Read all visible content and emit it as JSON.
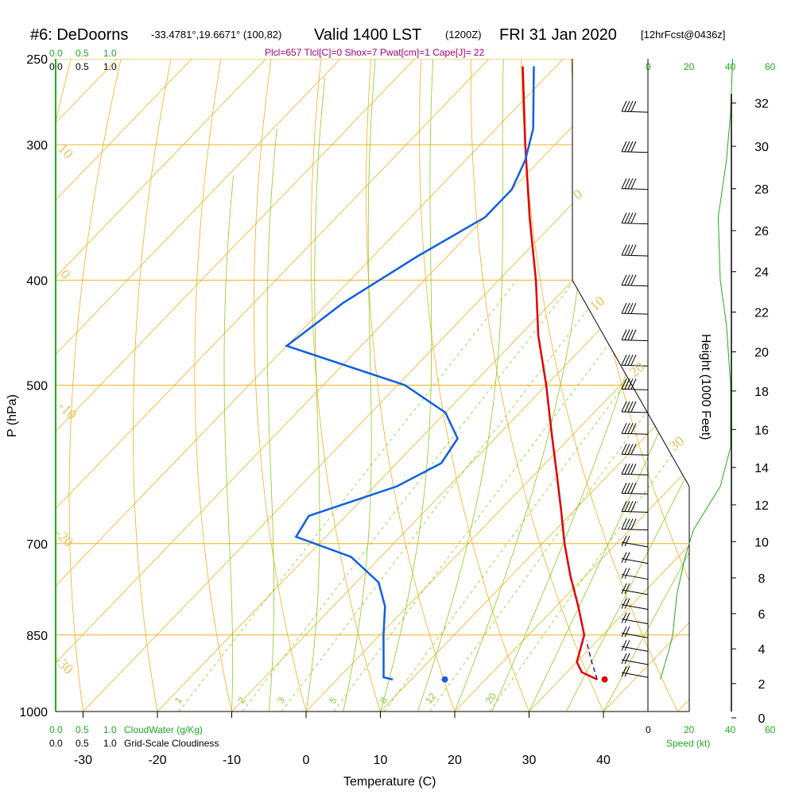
{
  "title": {
    "station": "#6: DeDoorns",
    "coords": "-33.4781°,19.6671° (100,82)",
    "valid": "Valid 1400 LST",
    "zulu": "(1200Z)",
    "date": "FRI 31 Jan 2020",
    "forecast": "[12hrFcst@0436z]"
  },
  "indices": "Plcl=657 Tlcl[C]=0 Shox=7 Pwat[cm]=1 Cape[J]= 22",
  "axes": {
    "xlabel": "Temperature (C)",
    "ylabel": "P (hPa)",
    "y2label": "Height (1000 Feet)",
    "speed_label": "Speed (kt)",
    "cloudwater_label": "CloudWater (g/Kg)",
    "cloudiness_label": "Grid-Scale Cloudiness"
  },
  "scale_labels": {
    "cloud_green": [
      "0.0",
      "0.5",
      "1.0"
    ],
    "cloud_black": [
      "0.0",
      "0.5",
      "1.0"
    ],
    "speed_ticks": [
      "0",
      "20",
      "40",
      "60"
    ]
  },
  "colors": {
    "isotherm": "#f0b020",
    "dry_adiabat": "#f0b020",
    "moist_adiabat": "#8ccc20",
    "mixing_ratio": "#8ccc20",
    "temperature": "#e00000",
    "dewpoint": "#1060e0",
    "parcel": "#660066",
    "cloud": "#22aa22",
    "barb": "#000000"
  },
  "chart_data": {
    "type": "skew-t",
    "title": "Valid 1400 LST (1200Z) FRI 31 Jan 2020",
    "xlabel": "Temperature (C)",
    "ylabel": "P (hPa)",
    "x_ticks": [
      -30,
      -20,
      -10,
      0,
      10,
      20,
      30,
      40
    ],
    "p_ticks": [
      250,
      300,
      400,
      500,
      700,
      850,
      1000
    ],
    "height_ticks_kft": [
      0,
      2,
      4,
      6,
      8,
      10,
      12,
      14,
      16,
      18,
      20,
      22,
      24,
      26,
      28,
      30,
      32
    ],
    "dry_adiabat_labels": [
      "10",
      "0",
      "-10",
      "-20",
      "-30",
      "0",
      "10",
      "20",
      "30"
    ],
    "mixing_ratio_labels": [
      "1",
      "2",
      "3",
      "5",
      "8",
      "12",
      "20"
    ],
    "series": [
      {
        "name": "Temperature",
        "points": [
          {
            "p": 934,
            "t": 35.0
          },
          {
            "p": 920,
            "t": 32.0
          },
          {
            "p": 900,
            "t": 30.0
          },
          {
            "p": 850,
            "t": 27.5
          },
          {
            "p": 800,
            "t": 23.0
          },
          {
            "p": 750,
            "t": 18.0
          },
          {
            "p": 700,
            "t": 13.0
          },
          {
            "p": 650,
            "t": 8.0
          },
          {
            "p": 600,
            "t": 2.5
          },
          {
            "p": 550,
            "t": -3.5
          },
          {
            "p": 500,
            "t": -10.0
          },
          {
            "p": 450,
            "t": -17.5
          },
          {
            "p": 400,
            "t": -25.0
          },
          {
            "p": 350,
            "t": -34.0
          },
          {
            "p": 300,
            "t": -44.0
          },
          {
            "p": 254,
            "t": -54.5
          }
        ]
      },
      {
        "name": "Dewpoint",
        "points": [
          {
            "p": 934,
            "t": 7.5
          },
          {
            "p": 930,
            "t": 6.0
          },
          {
            "p": 900,
            "t": 4.0
          },
          {
            "p": 850,
            "t": 0.5
          },
          {
            "p": 800,
            "t": -3.0
          },
          {
            "p": 760,
            "t": -7.0
          },
          {
            "p": 720,
            "t": -14.0
          },
          {
            "p": 690,
            "t": -24.0
          },
          {
            "p": 660,
            "t": -25.0
          },
          {
            "p": 620,
            "t": -17.0
          },
          {
            "p": 590,
            "t": -14.0
          },
          {
            "p": 560,
            "t": -15.0
          },
          {
            "p": 530,
            "t": -20.0
          },
          {
            "p": 500,
            "t": -29.0
          },
          {
            "p": 460,
            "t": -50.0
          },
          {
            "p": 420,
            "t": -48.0
          },
          {
            "p": 380,
            "t": -44.0
          },
          {
            "p": 350,
            "t": -40.0
          },
          {
            "p": 330,
            "t": -40.0
          },
          {
            "p": 310,
            "t": -42.0
          },
          {
            "p": 290,
            "t": -45.0
          },
          {
            "p": 254,
            "t": -53.0
          }
        ]
      },
      {
        "name": "Parcel",
        "points": [
          {
            "p": 934,
            "t": 35.0
          },
          {
            "p": 900,
            "t": 32.0
          },
          {
            "p": 860,
            "t": 28.5
          }
        ]
      }
    ],
    "surface_markers": [
      {
        "name": "surface temperature",
        "p": 934,
        "t": 36.0
      },
      {
        "name": "surface dewpoint",
        "p": 934,
        "t": 14.5
      }
    ],
    "wind_speed_kt": [
      {
        "p": 934,
        "kt": 6
      },
      {
        "p": 880,
        "kt": 10
      },
      {
        "p": 850,
        "kt": 12
      },
      {
        "p": 780,
        "kt": 14
      },
      {
        "p": 720,
        "kt": 18
      },
      {
        "p": 680,
        "kt": 22
      },
      {
        "p": 620,
        "kt": 35
      },
      {
        "p": 570,
        "kt": 40
      },
      {
        "p": 500,
        "kt": 40
      },
      {
        "p": 440,
        "kt": 38
      },
      {
        "p": 400,
        "kt": 35
      },
      {
        "p": 350,
        "kt": 34
      },
      {
        "p": 310,
        "kt": 38
      },
      {
        "p": 280,
        "kt": 40
      },
      {
        "p": 250,
        "kt": 41
      }
    ]
  }
}
